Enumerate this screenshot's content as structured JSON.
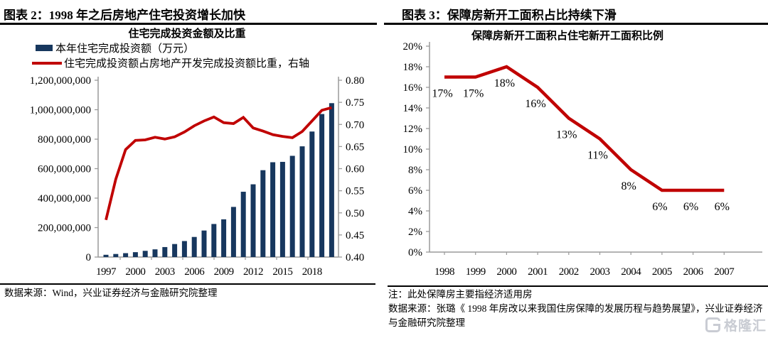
{
  "colors": {
    "bar": "#17375e",
    "line": "#c00000",
    "axis": "#9a9a9a",
    "text": "#000000",
    "watermark": "#c9ccd3"
  },
  "panels": {
    "left": {
      "header": "图表 2：1998 年之后房地产住宅投资增长加快",
      "source": "数据来源：Wind，兴业证券经济与金融研究院整理"
    },
    "right": {
      "header": "图表 3：保障房新开工面积占比持续下滑",
      "note": "注：此处保障房主要指经济适用房",
      "source": "数据来源：张璐《 1998 年房改以来我国住房保障的发展历程与趋势展望》，兴业证券经济与金融研究院整理"
    }
  },
  "watermark": {
    "icon": "G",
    "text": "格隆汇"
  },
  "chart_data": [
    {
      "type": "bar+line",
      "title": "住宅完成投资金额及比重",
      "legend": [
        {
          "label": "本年住宅完成投资额（万元）",
          "marker": "bar",
          "color": "#17375e"
        },
        {
          "label": "住宅完成投资额占房地产开发完成投资额比重，右轴",
          "marker": "line",
          "color": "#c00000"
        }
      ],
      "years": [
        1997,
        1998,
        1999,
        2000,
        2001,
        2002,
        2003,
        2004,
        2005,
        2006,
        2007,
        2008,
        2009,
        2010,
        2011,
        2012,
        2013,
        2014,
        2015,
        2016,
        2017,
        2018,
        2019,
        2020
      ],
      "bar_values": [
        15400000,
        20800000,
        26400000,
        33100000,
        42200000,
        52300000,
        67800000,
        88400000,
        108600000,
        136400000,
        180000000,
        224400000,
        256100000,
        340300000,
        443200000,
        493700000,
        589500000,
        643500000,
        646000000,
        687000000,
        751500000,
        851900000,
        970700000,
        1044500000
      ],
      "line_values": [
        0.484,
        0.576,
        0.643,
        0.664,
        0.665,
        0.671,
        0.667,
        0.672,
        0.683,
        0.697,
        0.708,
        0.717,
        0.704,
        0.702,
        0.716,
        0.692,
        0.685,
        0.677,
        0.673,
        0.67,
        0.684,
        0.708,
        0.732,
        0.738
      ],
      "left_axis": {
        "min": 0,
        "max": 1200000000,
        "step": 200000000,
        "tick_labels": [
          "1,200,000,000",
          "1,000,000,000",
          "800,000,000",
          "600,000,000",
          "400,000,000",
          "200,000,000",
          "0"
        ]
      },
      "right_axis": {
        "min": 0.4,
        "max": 0.8,
        "step": 0.05,
        "tick_labels": [
          "0.80",
          "0.75",
          "0.70",
          "0.65",
          "0.60",
          "0.55",
          "0.50",
          "0.45",
          "0.40"
        ]
      },
      "x_tick_labels": [
        "1997",
        "2000",
        "2003",
        "2006",
        "2009",
        "2012",
        "2015",
        "2018"
      ],
      "grid": false,
      "legend_position": "top-left"
    },
    {
      "type": "line",
      "title": "保障房新开工面积占住宅新开工面积比例",
      "categories": [
        "1998",
        "1999",
        "2000",
        "2001",
        "2002",
        "2003",
        "2004",
        "2005",
        "2006",
        "2007"
      ],
      "values": [
        17,
        17,
        18,
        16,
        13,
        11,
        8,
        6,
        6,
        6
      ],
      "point_labels": [
        "17%",
        "17%",
        "18%",
        "16%",
        "13%",
        "11%",
        "8%",
        "6%",
        "6%",
        "6%"
      ],
      "y_axis": {
        "min": 0,
        "max": 20,
        "step": 2,
        "unit": "%",
        "tick_labels": [
          "20%",
          "18%",
          "16%",
          "14%",
          "12%",
          "10%",
          "8%",
          "6%",
          "4%",
          "2%",
          "0%"
        ]
      },
      "line_color": "#c00000",
      "grid": false
    }
  ]
}
